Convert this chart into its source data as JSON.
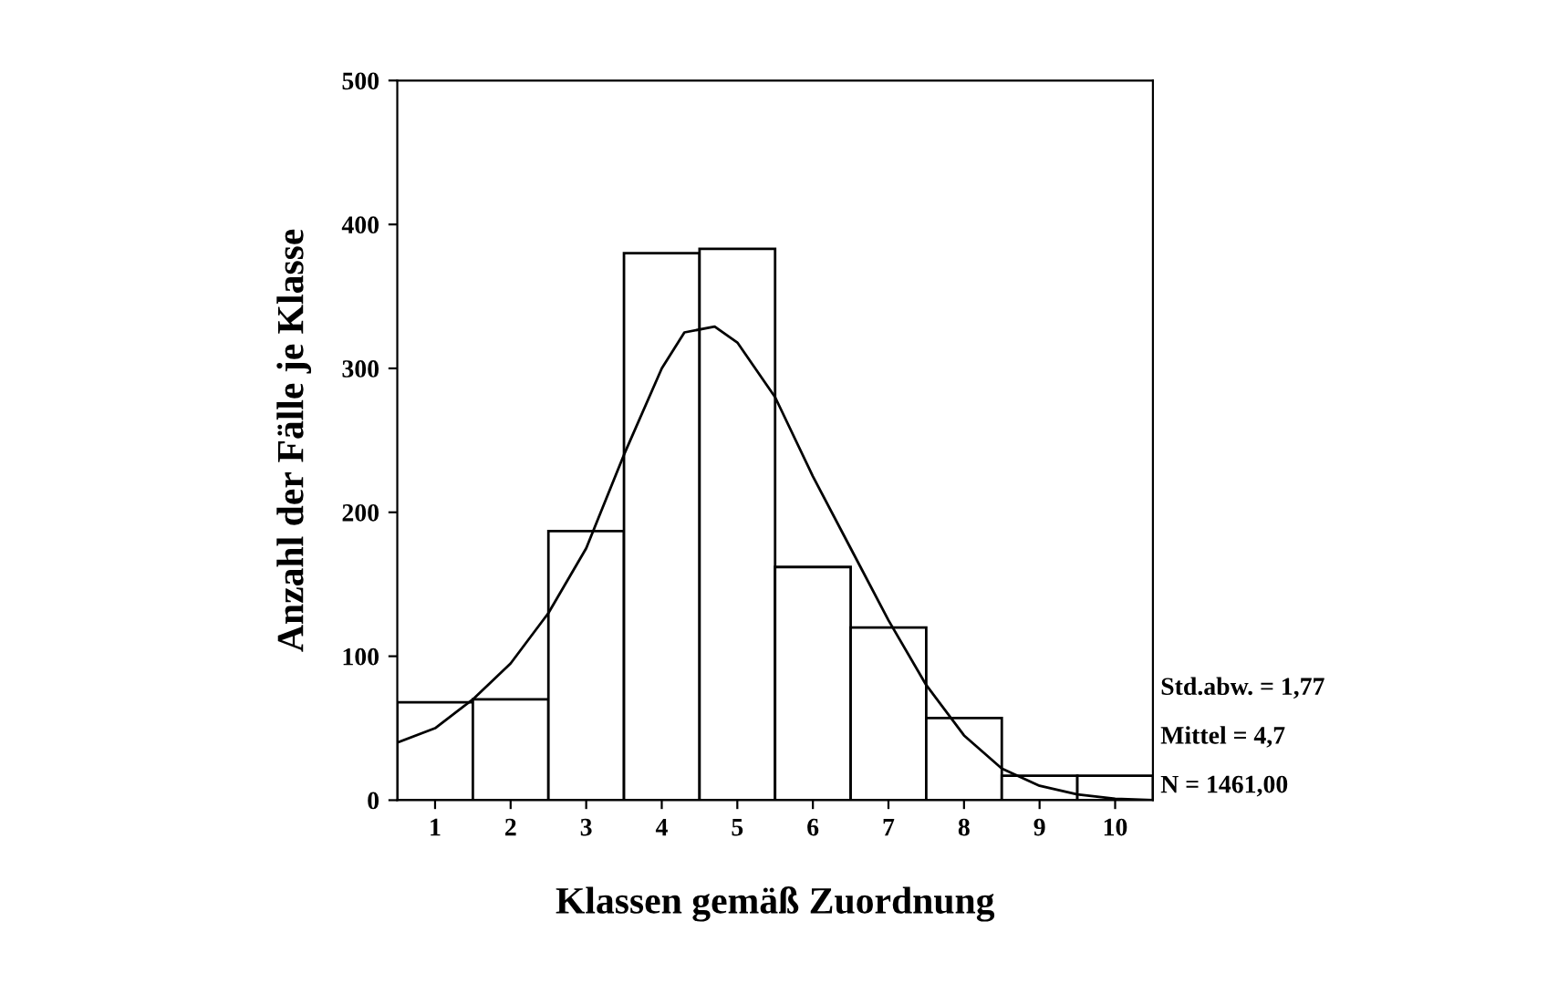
{
  "chart_data": {
    "type": "histogram",
    "xlabel": "Klassen gemäß Zuordnung",
    "ylabel": "Anzahl der Fälle je Klasse",
    "bins": [
      0.5,
      1.5,
      2.5,
      3.5,
      4.5,
      5.5,
      6.5,
      7.5,
      8.5,
      9.5,
      10.5
    ],
    "values": [
      68,
      70,
      187,
      380,
      383,
      162,
      120,
      57,
      17,
      17
    ],
    "color": "#ffffff",
    "series": [
      {
        "type": "line",
        "color": "#000000",
        "x": [
          0.5,
          1,
          1.5,
          2,
          2.5,
          3,
          3.5,
          4,
          4.3,
          4.7,
          5,
          5.5,
          6,
          6.5,
          7,
          7.5,
          8,
          8.5,
          9,
          9.5,
          10,
          10.5
        ],
        "values": [
          40,
          50,
          70,
          95,
          130,
          175,
          240,
          300,
          325,
          329,
          318,
          280,
          225,
          175,
          125,
          80,
          45,
          22,
          10,
          4,
          1,
          0
        ]
      }
    ],
    "xlim": [
      0.5,
      10.5
    ],
    "ylim": [
      0,
      500
    ],
    "xticks": [
      1,
      2,
      3,
      4,
      5,
      6,
      7,
      8,
      9,
      10
    ],
    "yticks": [
      0,
      100,
      200,
      300,
      400,
      500
    ],
    "grid": false,
    "annotations": [
      "Std.abw. = 1,77",
      "Mittel = 4,7",
      "N = 1461,00"
    ]
  }
}
